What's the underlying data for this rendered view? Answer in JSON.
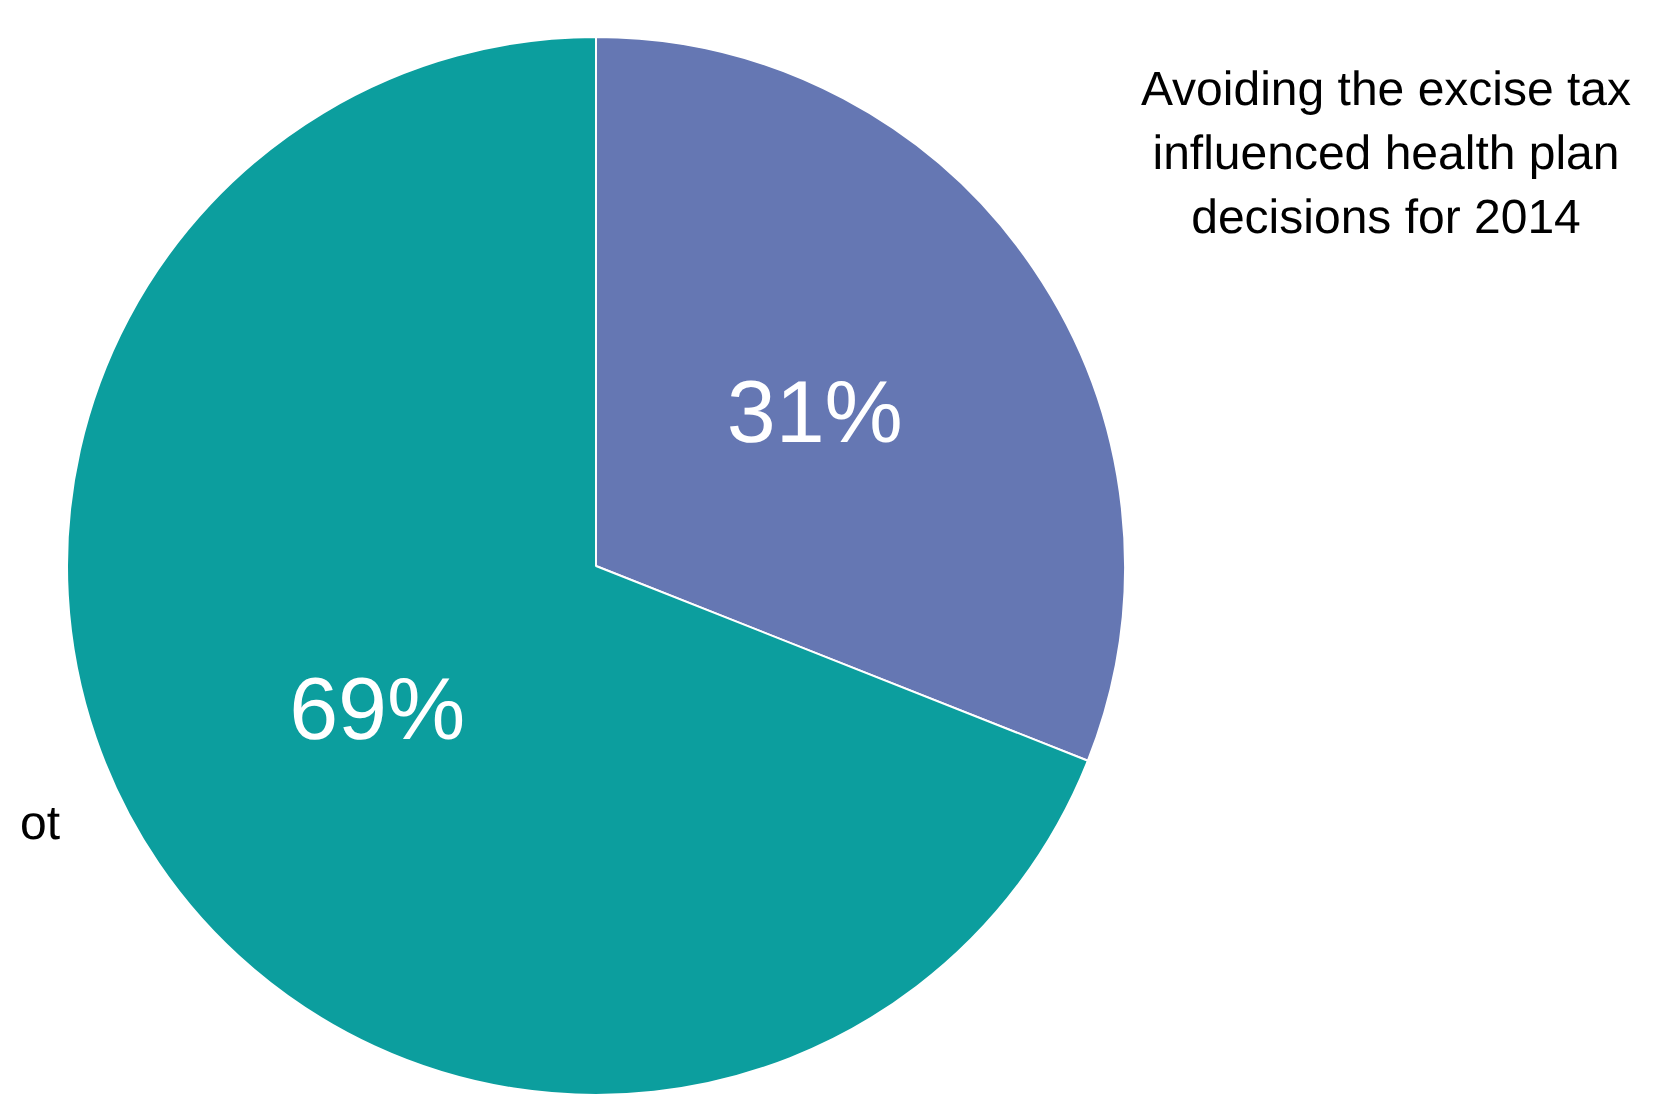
{
  "chart_data": {
    "type": "pie",
    "categories": [
      "Avoiding the excise tax influenced health plan decisions for 2014",
      "ot"
    ],
    "values": [
      31,
      69
    ],
    "colors": [
      "#6577b3",
      "#0c9e9e"
    ],
    "value_labels": [
      "31%",
      "69%"
    ],
    "legend": false
  }
}
